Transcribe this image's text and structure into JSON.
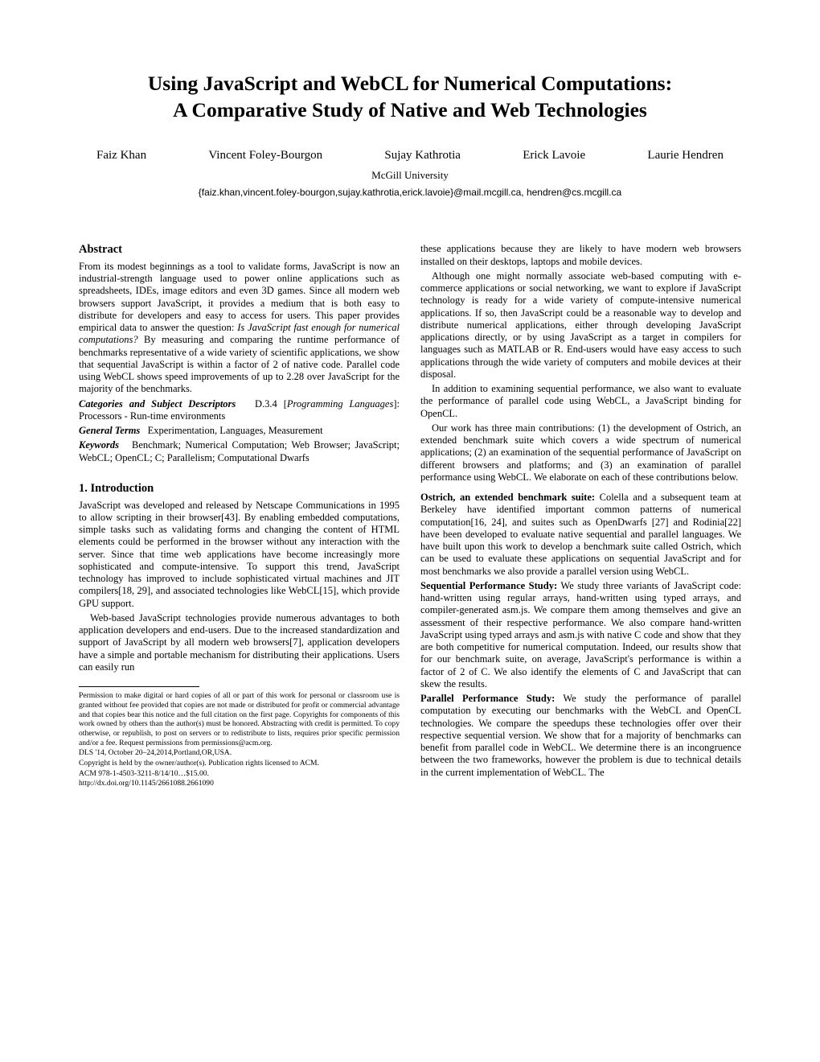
{
  "title_line1": "Using JavaScript and WebCL for Numerical Computations:",
  "title_line2": "A Comparative Study of Native and Web Technologies",
  "authors": [
    "Faiz Khan",
    "Vincent Foley-Bourgon",
    "Sujay Kathrotia",
    "Erick Lavoie",
    "Laurie Hendren"
  ],
  "affiliation": "McGill University",
  "emails": "{faiz.khan,vincent.foley-bourgon,sujay.kathrotia,erick.lavoie}@mail.mcgill.ca, hendren@cs.mcgill.ca",
  "abstract_heading": "Abstract",
  "abstract_p1a": "From its modest beginnings as a tool to validate forms, JavaScript is now an industrial-strength language used to power online applications such as spreadsheets, IDEs, image editors and even 3D games. Since all modern web browsers support JavaScript, it provides a medium that is both easy to distribute for developers and easy to access for users. This paper provides empirical data to answer the question: ",
  "abstract_q": "Is JavaScript fast enough for numerical computations?",
  "abstract_p1b": " By measuring and comparing the runtime performance of benchmarks representative of a wide variety of scientific applications, we show that sequential JavaScript is within a factor of 2 of native code. Parallel code using WebCL shows speed improvements of up to 2.28 over JavaScript for the majority of the benchmarks.",
  "cat_label": "Categories and Subject Descriptors",
  "cat_code": "D.3.4 [",
  "cat_ital": "Programming Languages",
  "cat_rest": "]: Processors - Run-time environments",
  "terms_label": "General Terms",
  "terms_text": "Experimentation, Languages, Measurement",
  "keywords_label": "Keywords",
  "keywords_text": "Benchmark; Numerical Computation; Web Browser; JavaScript; WebCL; OpenCL; C; Parallelism; Computational Dwarfs",
  "intro_heading": "1.   Introduction",
  "intro_p1": "JavaScript was developed and released by Netscape Communications in 1995 to allow scripting in their browser[43]. By enabling embedded computations, simple tasks such as validating forms and changing the content of HTML elements could be performed in the browser without any interaction with the server. Since that time web applications have become increasingly more sophisticated and compute-intensive. To support this trend, JavaScript technology has improved to include sophisticated virtual machines and JIT compilers[18, 29], and associated technologies like WebCL[15], which provide GPU support.",
  "intro_p2": "Web-based JavaScript technologies provide numerous advantages to both application developers and end-users. Due to the increased standardization and support of JavaScript by all modern web browsers[7], application developers have a simple and portable mechanism for distributing their applications. Users can easily run",
  "right_p1": "these applications because they are likely to have modern web browsers installed on their desktops, laptops and mobile devices.",
  "right_p2": "Although one might normally associate web-based computing with e-commerce applications or social networking, we want to explore if JavaScript technology is ready for a wide variety of compute-intensive numerical applications. If so, then JavaScript could be a reasonable way to develop and distribute numerical applications, either through developing JavaScript applications directly, or by using JavaScript as a target in compilers for languages such as MATLAB or R. End-users would have easy access to such applications through the wide variety of computers and mobile devices at their disposal.",
  "right_p3": "In addition to examining sequential performance, we also want to evaluate the performance of parallel code using WebCL, a JavaScript binding for OpenCL.",
  "right_p4": "Our work has three main contributions: (1) the development of Ostrich, an extended benchmark suite which covers a wide spectrum of numerical applications; (2) an examination of the sequential performance of JavaScript on different browsers and platforms; and (3) an examination of parallel performance using WebCL. We elaborate on each of these contributions below.",
  "contrib1_lead": "Ostrich, an extended benchmark suite:",
  "contrib1_text": " Colella and a subsequent team at Berkeley have identified important common patterns of numerical computation[16, 24], and suites such as OpenDwarfs [27] and Rodinia[22] have been developed to evaluate native sequential and parallel languages. We have built upon this work to develop a benchmark suite called Ostrich, which can be used to evaluate these applications on sequential JavaScript and for most benchmarks we also provide a parallel version using WebCL.",
  "contrib2_lead": "Sequential Performance Study:",
  "contrib2_text": " We study three variants of JavaScript code: hand-written using regular arrays, hand-written using typed arrays, and compiler-generated asm.js. We compare them among themselves and give an assessment of their respective performance. We also compare hand-written JavaScript using typed arrays and asm.js with native C code and show that they are both competitive for numerical computation. Indeed, our results show that for our benchmark suite, on average, JavaScript's performance is within a factor of 2 of C. We also identify the elements of C and JavaScript that can skew the results.",
  "contrib3_lead": "Parallel Performance Study:",
  "contrib3_text": " We study the performance of parallel computation by executing our benchmarks with the WebCL and OpenCL technologies. We compare the speedups these technologies offer over their respective sequential version. We show that for a majority of benchmarks can benefit from parallel code in WebCL. We determine there is an incongruence between the two frameworks, however the problem is due to technical details in the current implementation of WebCL. The",
  "footnote_perm": "Permission to make digital or hard copies of all or part of this work for personal or classroom use is granted without fee provided that copies are not made or distributed for profit or commercial advantage and that copies bear this notice and the full citation on the first page. Copyrights for components of this work owned by others than the author(s) must be honored. Abstracting with credit is permitted. To copy otherwise, or republish, to post on servers or to redistribute to lists, requires prior specific permission and/or a fee. Request permissions from permissions@acm.org.",
  "footnote_conf": "DLS '14,    October 20–24,2014,Portland,OR,USA.",
  "footnote_copy": "Copyright is held by the owner/author(s). Publication rights licensed to ACM.",
  "footnote_isbn": "ACM 978-1-4503-3211-8/14/10…$15.00.",
  "footnote_doi": "http://dx.doi.org/10.1145/2661088.2661090"
}
